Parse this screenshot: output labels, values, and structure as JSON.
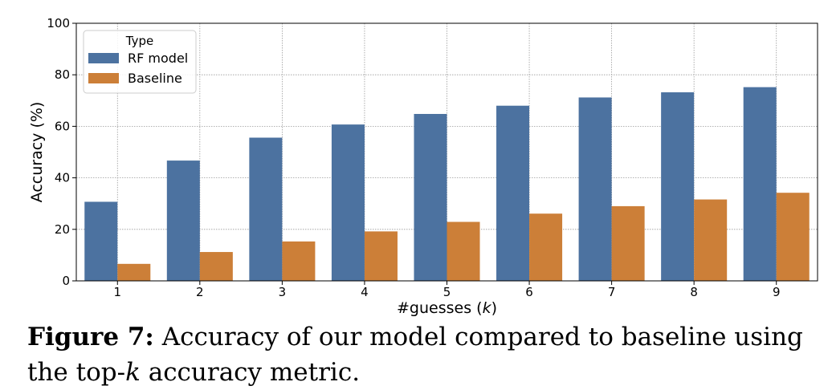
{
  "chart_data": {
    "type": "bar",
    "categories": [
      "1",
      "2",
      "3",
      "4",
      "5",
      "6",
      "7",
      "8",
      "9"
    ],
    "series": [
      {
        "name": "RF model",
        "values": [
          30.7,
          46.7,
          55.6,
          60.7,
          64.8,
          68.0,
          71.2,
          73.2,
          75.2
        ]
      },
      {
        "name": "Baseline",
        "values": [
          6.6,
          11.2,
          15.3,
          19.2,
          22.9,
          26.1,
          29.0,
          31.6,
          34.2
        ]
      }
    ],
    "xlabel_prefix": "#guesses (",
    "xlabel_var": "k",
    "xlabel_suffix": ")",
    "ylabel": "Accuracy (%)",
    "ylim": [
      0,
      100
    ],
    "yticks": [
      0,
      20,
      40,
      60,
      80,
      100
    ],
    "grid": true,
    "legend": {
      "title": "Type",
      "placement": "top-left"
    },
    "colors": {
      "RF model": "#4c72a0",
      "Baseline": "#cc7f38"
    }
  },
  "caption": {
    "label": "Figure 7:",
    "text_before": " Accuracy of our model compared to baseline using the top-",
    "var": "k",
    "text_after": " accuracy metric."
  }
}
